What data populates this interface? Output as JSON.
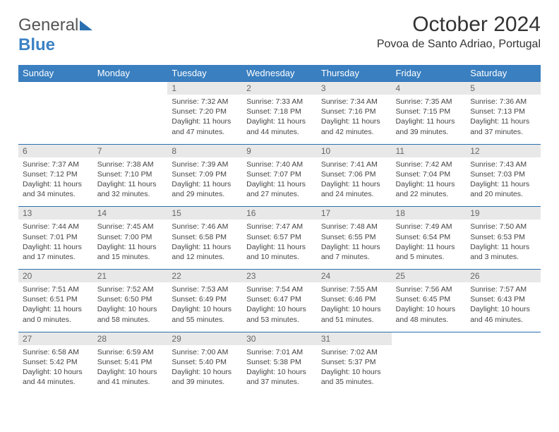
{
  "brand": {
    "part1": "General",
    "part2": "Blue"
  },
  "title": "October 2024",
  "location": "Povoa de Santo Adriao, Portugal",
  "columns": [
    "Sunday",
    "Monday",
    "Tuesday",
    "Wednesday",
    "Thursday",
    "Friday",
    "Saturday"
  ],
  "colors": {
    "header_bg": "#3a7fc0",
    "daynum_bg": "#e8e8e8",
    "row_border": "#2a6fb0"
  },
  "weeks": [
    [
      null,
      null,
      {
        "n": "1",
        "sr": "Sunrise: 7:32 AM",
        "ss": "Sunset: 7:20 PM",
        "dl": "Daylight: 11 hours and 47 minutes."
      },
      {
        "n": "2",
        "sr": "Sunrise: 7:33 AM",
        "ss": "Sunset: 7:18 PM",
        "dl": "Daylight: 11 hours and 44 minutes."
      },
      {
        "n": "3",
        "sr": "Sunrise: 7:34 AM",
        "ss": "Sunset: 7:16 PM",
        "dl": "Daylight: 11 hours and 42 minutes."
      },
      {
        "n": "4",
        "sr": "Sunrise: 7:35 AM",
        "ss": "Sunset: 7:15 PM",
        "dl": "Daylight: 11 hours and 39 minutes."
      },
      {
        "n": "5",
        "sr": "Sunrise: 7:36 AM",
        "ss": "Sunset: 7:13 PM",
        "dl": "Daylight: 11 hours and 37 minutes."
      }
    ],
    [
      {
        "n": "6",
        "sr": "Sunrise: 7:37 AM",
        "ss": "Sunset: 7:12 PM",
        "dl": "Daylight: 11 hours and 34 minutes."
      },
      {
        "n": "7",
        "sr": "Sunrise: 7:38 AM",
        "ss": "Sunset: 7:10 PM",
        "dl": "Daylight: 11 hours and 32 minutes."
      },
      {
        "n": "8",
        "sr": "Sunrise: 7:39 AM",
        "ss": "Sunset: 7:09 PM",
        "dl": "Daylight: 11 hours and 29 minutes."
      },
      {
        "n": "9",
        "sr": "Sunrise: 7:40 AM",
        "ss": "Sunset: 7:07 PM",
        "dl": "Daylight: 11 hours and 27 minutes."
      },
      {
        "n": "10",
        "sr": "Sunrise: 7:41 AM",
        "ss": "Sunset: 7:06 PM",
        "dl": "Daylight: 11 hours and 24 minutes."
      },
      {
        "n": "11",
        "sr": "Sunrise: 7:42 AM",
        "ss": "Sunset: 7:04 PM",
        "dl": "Daylight: 11 hours and 22 minutes."
      },
      {
        "n": "12",
        "sr": "Sunrise: 7:43 AM",
        "ss": "Sunset: 7:03 PM",
        "dl": "Daylight: 11 hours and 20 minutes."
      }
    ],
    [
      {
        "n": "13",
        "sr": "Sunrise: 7:44 AM",
        "ss": "Sunset: 7:01 PM",
        "dl": "Daylight: 11 hours and 17 minutes."
      },
      {
        "n": "14",
        "sr": "Sunrise: 7:45 AM",
        "ss": "Sunset: 7:00 PM",
        "dl": "Daylight: 11 hours and 15 minutes."
      },
      {
        "n": "15",
        "sr": "Sunrise: 7:46 AM",
        "ss": "Sunset: 6:58 PM",
        "dl": "Daylight: 11 hours and 12 minutes."
      },
      {
        "n": "16",
        "sr": "Sunrise: 7:47 AM",
        "ss": "Sunset: 6:57 PM",
        "dl": "Daylight: 11 hours and 10 minutes."
      },
      {
        "n": "17",
        "sr": "Sunrise: 7:48 AM",
        "ss": "Sunset: 6:55 PM",
        "dl": "Daylight: 11 hours and 7 minutes."
      },
      {
        "n": "18",
        "sr": "Sunrise: 7:49 AM",
        "ss": "Sunset: 6:54 PM",
        "dl": "Daylight: 11 hours and 5 minutes."
      },
      {
        "n": "19",
        "sr": "Sunrise: 7:50 AM",
        "ss": "Sunset: 6:53 PM",
        "dl": "Daylight: 11 hours and 3 minutes."
      }
    ],
    [
      {
        "n": "20",
        "sr": "Sunrise: 7:51 AM",
        "ss": "Sunset: 6:51 PM",
        "dl": "Daylight: 11 hours and 0 minutes."
      },
      {
        "n": "21",
        "sr": "Sunrise: 7:52 AM",
        "ss": "Sunset: 6:50 PM",
        "dl": "Daylight: 10 hours and 58 minutes."
      },
      {
        "n": "22",
        "sr": "Sunrise: 7:53 AM",
        "ss": "Sunset: 6:49 PM",
        "dl": "Daylight: 10 hours and 55 minutes."
      },
      {
        "n": "23",
        "sr": "Sunrise: 7:54 AM",
        "ss": "Sunset: 6:47 PM",
        "dl": "Daylight: 10 hours and 53 minutes."
      },
      {
        "n": "24",
        "sr": "Sunrise: 7:55 AM",
        "ss": "Sunset: 6:46 PM",
        "dl": "Daylight: 10 hours and 51 minutes."
      },
      {
        "n": "25",
        "sr": "Sunrise: 7:56 AM",
        "ss": "Sunset: 6:45 PM",
        "dl": "Daylight: 10 hours and 48 minutes."
      },
      {
        "n": "26",
        "sr": "Sunrise: 7:57 AM",
        "ss": "Sunset: 6:43 PM",
        "dl": "Daylight: 10 hours and 46 minutes."
      }
    ],
    [
      {
        "n": "27",
        "sr": "Sunrise: 6:58 AM",
        "ss": "Sunset: 5:42 PM",
        "dl": "Daylight: 10 hours and 44 minutes."
      },
      {
        "n": "28",
        "sr": "Sunrise: 6:59 AM",
        "ss": "Sunset: 5:41 PM",
        "dl": "Daylight: 10 hours and 41 minutes."
      },
      {
        "n": "29",
        "sr": "Sunrise: 7:00 AM",
        "ss": "Sunset: 5:40 PM",
        "dl": "Daylight: 10 hours and 39 minutes."
      },
      {
        "n": "30",
        "sr": "Sunrise: 7:01 AM",
        "ss": "Sunset: 5:38 PM",
        "dl": "Daylight: 10 hours and 37 minutes."
      },
      {
        "n": "31",
        "sr": "Sunrise: 7:02 AM",
        "ss": "Sunset: 5:37 PM",
        "dl": "Daylight: 10 hours and 35 minutes."
      },
      null,
      null
    ]
  ]
}
